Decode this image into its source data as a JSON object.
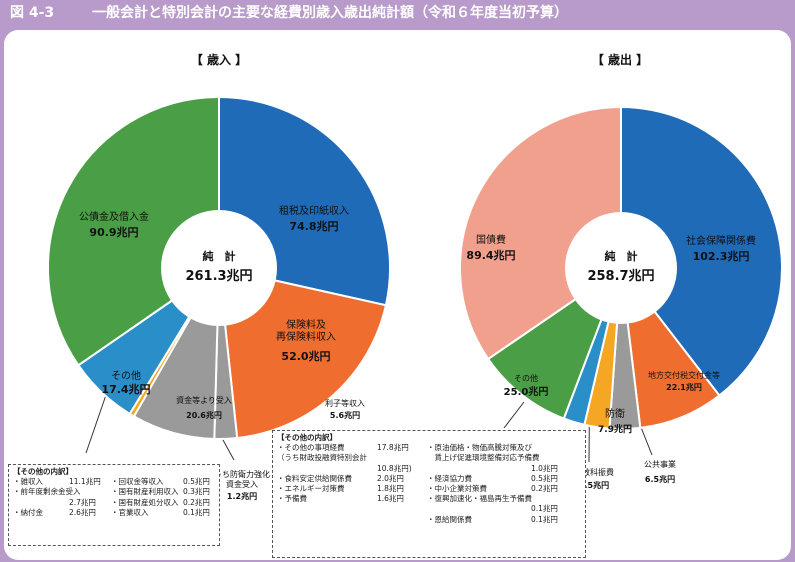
{
  "figure": {
    "number": "図 4-3",
    "title": "一般会計と特別会計の主要な経費別歳入歳出純計額（令和６年度当初予算）"
  },
  "colors": {
    "frame": "#b89bcb",
    "blue": "#1f6bb8",
    "orange": "#f06d30",
    "gray": "#9a9a9a",
    "yellow": "#f5a623",
    "lightblue": "#2a8fc9",
    "green": "#4a9e45",
    "salmon": "#f2a08e"
  },
  "chart_data": [
    {
      "type": "pie",
      "title": "【 歳入 】",
      "center_label": "純　計",
      "total": "261.3兆円",
      "unit": "兆円",
      "slices": [
        {
          "label": "租税及印紙収入",
          "value": 74.8,
          "value_label": "74.8兆円",
          "color": "#1f6bb8"
        },
        {
          "label": "保険料及再保険料収入",
          "value": 52.0,
          "value_label": "52.0兆円",
          "color": "#f06d30"
        },
        {
          "label": "利子等収入",
          "value": 5.6,
          "value_label": "5.6兆円",
          "color": "#9a9a9a"
        },
        {
          "label": "資金等より受入",
          "value": 20.6,
          "value_label": "20.6兆円",
          "color": "#9a9a9a"
        },
        {
          "label": "うち防衛力強化資金受入",
          "value": 1.2,
          "value_label": "1.2兆円",
          "color": "#f5a623"
        },
        {
          "label": "その他",
          "value": 17.4,
          "value_label": "17.4兆円",
          "color": "#2a8fc9"
        },
        {
          "label": "公債金及借入金",
          "value": 90.9,
          "value_label": "90.9兆円",
          "color": "#4a9e45"
        }
      ]
    },
    {
      "type": "pie",
      "title": "【 歳出 】",
      "center_label": "純　計",
      "total": "258.7兆円",
      "unit": "兆円",
      "slices": [
        {
          "label": "社会保障関係費",
          "value": 102.3,
          "value_label": "102.3兆円",
          "color": "#1f6bb8"
        },
        {
          "label": "地方交付税交付金等",
          "value": 22.1,
          "value_label": "22.1兆円",
          "color": "#f06d30"
        },
        {
          "label": "防衛",
          "value": 7.9,
          "value_label": "7.9兆円",
          "color": "#9a9a9a"
        },
        {
          "label": "公共事業",
          "value": 6.5,
          "value_label": "6.5兆円",
          "color": "#f5a623"
        },
        {
          "label": "文教科振費",
          "value": 5.5,
          "value_label": "5.5兆円",
          "color": "#2a8fc9"
        },
        {
          "label": "その他",
          "value": 25.0,
          "value_label": "25.0兆円",
          "color": "#4a9e45"
        },
        {
          "label": "国債費",
          "value": 89.4,
          "value_label": "89.4兆円",
          "color": "#f2a08e"
        }
      ]
    }
  ],
  "revenue_breakdown": {
    "header": "【その他の内訳】",
    "items": [
      {
        "name": "・雑収入",
        "value": "11.1兆円"
      },
      {
        "name": "・前年度剰余金受入",
        "value": "2.7兆円"
      },
      {
        "name": "・納付金",
        "value": "2.6兆円"
      },
      {
        "name": "・回収金等収入",
        "value": "0.5兆円"
      },
      {
        "name": "・国有財産利用収入",
        "value": "0.3兆円"
      },
      {
        "name": "・国有財産処分収入",
        "value": "0.2兆円"
      },
      {
        "name": "・官業収入",
        "value": "0.1兆円"
      }
    ]
  },
  "expenditure_breakdown": {
    "header": "【その他の内訳】",
    "left": [
      {
        "name": "・その他の事項経費",
        "value": "17.8兆円"
      },
      {
        "name": "（うち財政投融資特別会計",
        "value": ""
      },
      {
        "name": "",
        "value": "10.8兆円)"
      },
      {
        "name": "・食料安定供給関係費",
        "value": "2.0兆円"
      },
      {
        "name": "・エネルギー対策費",
        "value": "1.8兆円"
      },
      {
        "name": "・予備費",
        "value": "1.6兆円"
      }
    ],
    "right": [
      {
        "name": "・原油価格・物価高騰対策及び",
        "value": ""
      },
      {
        "name": "　賃上げ促進環境整備対応予備費",
        "value": ""
      },
      {
        "name": "",
        "value": "1.0兆円"
      },
      {
        "name": "・経済協力費",
        "value": "0.5兆円"
      },
      {
        "name": "・中小企業対策費",
        "value": "0.2兆円"
      },
      {
        "name": "・復興加速化・福島再生予備費",
        "value": ""
      },
      {
        "name": "",
        "value": "0.1兆円"
      },
      {
        "name": "・恩給関係費",
        "value": "0.1兆円"
      }
    ]
  }
}
